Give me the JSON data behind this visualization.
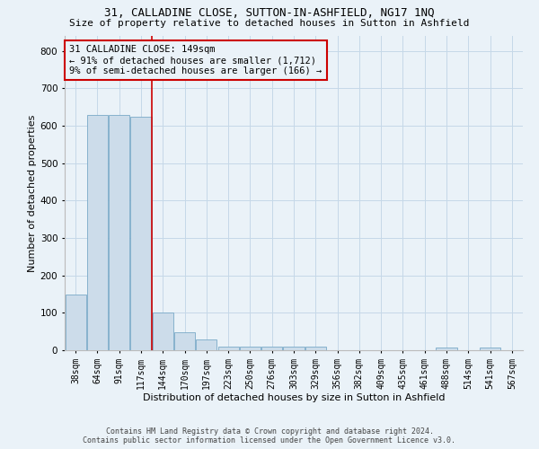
{
  "title1": "31, CALLADINE CLOSE, SUTTON-IN-ASHFIELD, NG17 1NQ",
  "title2": "Size of property relative to detached houses in Sutton in Ashfield",
  "xlabel": "Distribution of detached houses by size in Sutton in Ashfield",
  "ylabel": "Number of detached properties",
  "categories": [
    "38sqm",
    "64sqm",
    "91sqm",
    "117sqm",
    "144sqm",
    "170sqm",
    "197sqm",
    "223sqm",
    "250sqm",
    "276sqm",
    "303sqm",
    "329sqm",
    "356sqm",
    "382sqm",
    "409sqm",
    "435sqm",
    "461sqm",
    "488sqm",
    "514sqm",
    "541sqm",
    "567sqm"
  ],
  "values": [
    150,
    630,
    630,
    625,
    100,
    47,
    30,
    10,
    10,
    10,
    10,
    10,
    0,
    0,
    0,
    0,
    0,
    7,
    0,
    7,
    0
  ],
  "bar_color": "#ccdcea",
  "bar_edge_color": "#7aaac8",
  "grid_color": "#c5d8e8",
  "annotation_text_line1": "31 CALLADINE CLOSE: 149sqm",
  "annotation_text_line2": "← 91% of detached houses are smaller (1,712)",
  "annotation_text_line3": "9% of semi-detached houses are larger (166) →",
  "annotation_box_color": "#cc0000",
  "vline_bar_index": 4,
  "ylim": [
    0,
    840
  ],
  "yticks": [
    0,
    100,
    200,
    300,
    400,
    500,
    600,
    700,
    800
  ],
  "footer1": "Contains HM Land Registry data © Crown copyright and database right 2024.",
  "footer2": "Contains public sector information licensed under the Open Government Licence v3.0.",
  "bg_color": "#eaf2f8",
  "title1_fontsize": 9,
  "title2_fontsize": 8,
  "ylabel_fontsize": 8,
  "xlabel_fontsize": 8,
  "tick_fontsize": 7,
  "footer_fontsize": 6,
  "ann_fontsize": 7.5
}
